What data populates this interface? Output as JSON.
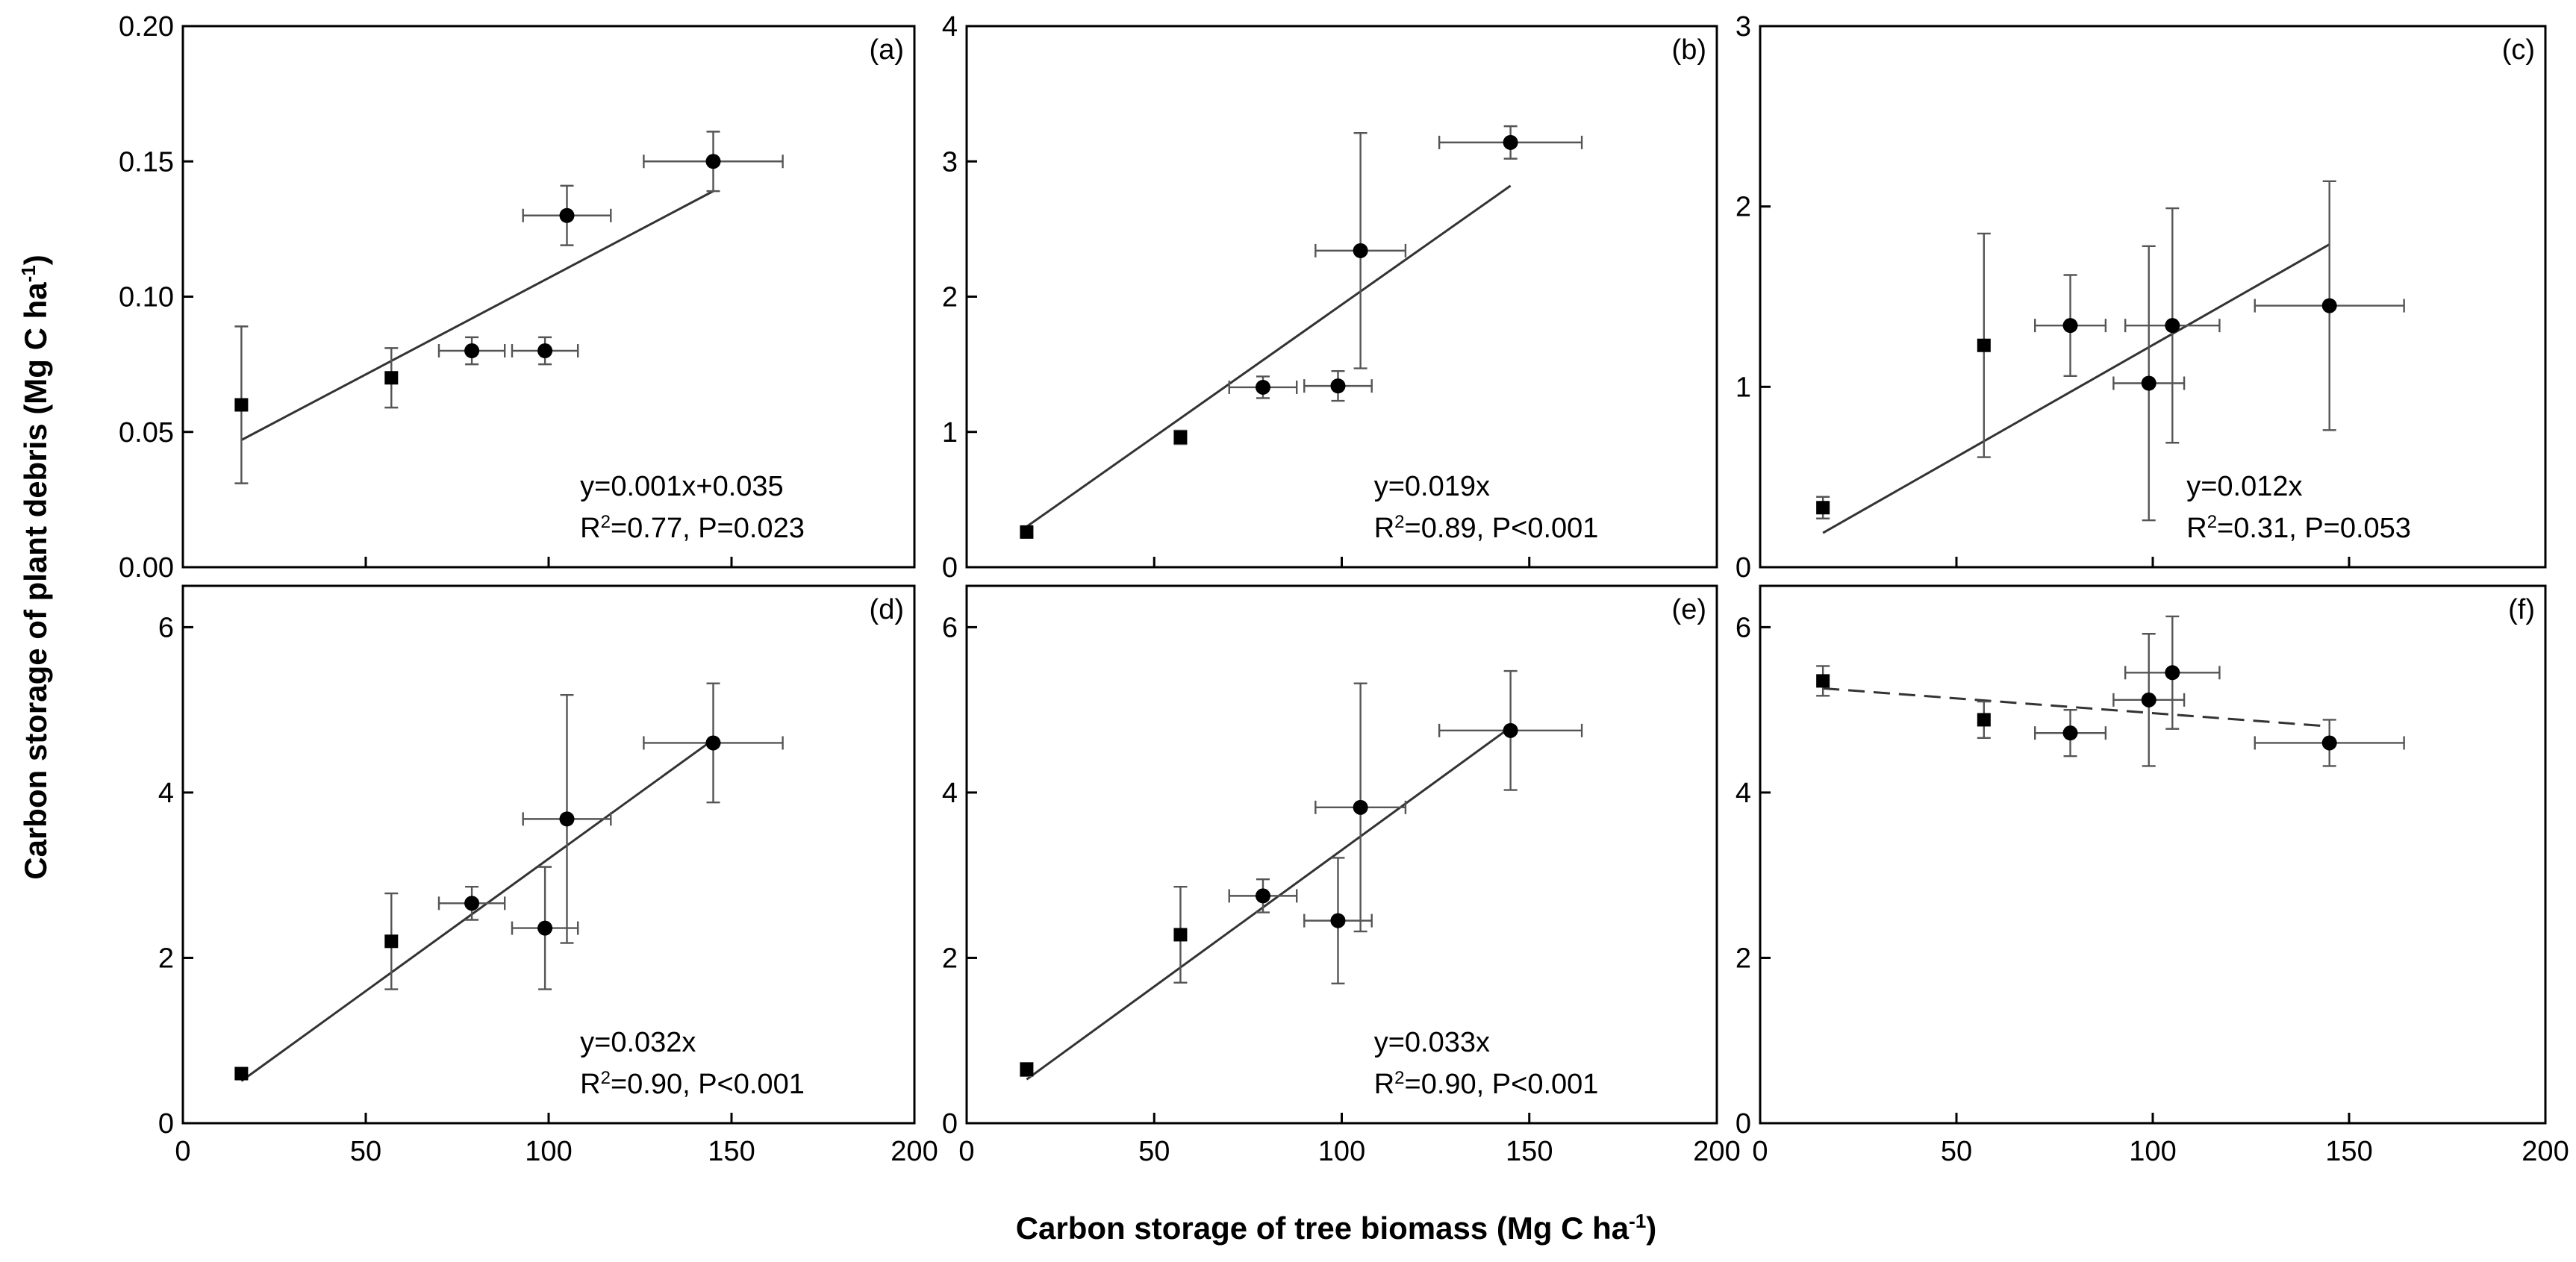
{
  "figure": {
    "xlabel": "Carbon storage of tree biomass (Mg C ha",
    "xlabel_sup": "-1",
    "xlabel_end": ")",
    "ylabel": "Carbon storage of plant debris (Mg C ha",
    "ylabel_sup": "-1",
    "ylabel_end": ")"
  },
  "chart_data": [
    {
      "type": "scatter",
      "panel": "(a)",
      "xlim": [
        0,
        200
      ],
      "ylim": [
        0,
        0.2
      ],
      "xticks": [
        "0",
        "50",
        "100",
        "150",
        "200"
      ],
      "yticks": [
        "0.00",
        "0.05",
        "0.10",
        "0.15",
        "0.20"
      ],
      "xtick_values": [
        0,
        50,
        100,
        150,
        200
      ],
      "ytick_values": [
        0,
        0.05,
        0.1,
        0.15,
        0.2
      ],
      "points": [
        {
          "x": 16,
          "y": 0.06,
          "xerr": 0,
          "yerr": 0.029,
          "marker": "square"
        },
        {
          "x": 57,
          "y": 0.07,
          "xerr": 0,
          "yerr": 0.011,
          "marker": "square"
        },
        {
          "x": 79,
          "y": 0.08,
          "xerr": 9,
          "yerr": 0.005,
          "marker": "circle"
        },
        {
          "x": 99,
          "y": 0.08,
          "xerr": 9,
          "yerr": 0.005,
          "marker": "circle"
        },
        {
          "x": 105,
          "y": 0.13,
          "xerr": 12,
          "yerr": 0.011,
          "marker": "circle"
        },
        {
          "x": 145,
          "y": 0.15,
          "xerr": 19,
          "yerr": 0.011,
          "marker": "circle"
        }
      ],
      "fit": {
        "x": [
          16,
          145
        ],
        "y": [
          0.047,
          0.139
        ],
        "dashed": false
      },
      "equation": "y=0.001x+0.035",
      "r2_label": "R",
      "r2_sup": "2",
      "stats": "=0.77, P=0.023"
    },
    {
      "type": "scatter",
      "panel": "(b)",
      "xlim": [
        0,
        200
      ],
      "ylim": [
        0,
        4
      ],
      "xticks": [
        "0",
        "50",
        "100",
        "150",
        "200"
      ],
      "yticks": [
        "0",
        "1",
        "2",
        "3",
        "4"
      ],
      "xtick_values": [
        0,
        50,
        100,
        150,
        200
      ],
      "ytick_values": [
        0,
        1,
        2,
        3,
        4
      ],
      "points": [
        {
          "x": 16,
          "y": 0.26,
          "xerr": 0,
          "yerr": 0.03,
          "marker": "square"
        },
        {
          "x": 57,
          "y": 0.96,
          "xerr": 0,
          "yerr": 0.05,
          "marker": "square"
        },
        {
          "x": 79,
          "y": 1.33,
          "xerr": 9,
          "yerr": 0.08,
          "marker": "circle"
        },
        {
          "x": 99,
          "y": 1.34,
          "xerr": 9,
          "yerr": 0.11,
          "marker": "circle"
        },
        {
          "x": 105,
          "y": 2.34,
          "xerr": 12,
          "yerr": 0.87,
          "marker": "circle"
        },
        {
          "x": 145,
          "y": 3.14,
          "xerr": 19,
          "yerr": 0.12,
          "marker": "circle"
        }
      ],
      "fit": {
        "x": [
          16,
          145
        ],
        "y": [
          0.3,
          2.82
        ],
        "dashed": false
      },
      "equation": "y=0.019x",
      "r2_label": "R",
      "r2_sup": "2",
      "stats": "=0.89, P<0.001"
    },
    {
      "type": "scatter",
      "panel": "(c)",
      "xlim": [
        0,
        200
      ],
      "ylim": [
        0,
        3
      ],
      "xticks": [
        "0",
        "50",
        "100",
        "150",
        "200"
      ],
      "yticks": [
        "0",
        "1",
        "2",
        "3"
      ],
      "xtick_values": [
        0,
        50,
        100,
        150,
        200
      ],
      "ytick_values": [
        0,
        1,
        2,
        3
      ],
      "points": [
        {
          "x": 16,
          "y": 0.33,
          "xerr": 0,
          "yerr": 0.06,
          "marker": "square"
        },
        {
          "x": 57,
          "y": 1.23,
          "xerr": 0,
          "yerr": 0.62,
          "marker": "square"
        },
        {
          "x": 79,
          "y": 1.34,
          "xerr": 9,
          "yerr": 0.28,
          "marker": "circle"
        },
        {
          "x": 99,
          "y": 1.02,
          "xerr": 9,
          "yerr": 0.76,
          "marker": "circle"
        },
        {
          "x": 105,
          "y": 1.34,
          "xerr": 12,
          "yerr": 0.65,
          "marker": "circle"
        },
        {
          "x": 145,
          "y": 1.45,
          "xerr": 19,
          "yerr": 0.69,
          "marker": "circle"
        }
      ],
      "fit": {
        "x": [
          16,
          145
        ],
        "y": [
          0.19,
          1.79
        ],
        "dashed": false
      },
      "equation": "y=0.012x",
      "r2_label": "R",
      "r2_sup": "2",
      "stats": "=0.31, P=0.053"
    },
    {
      "type": "scatter",
      "panel": "(d)",
      "xlim": [
        0,
        200
      ],
      "ylim": [
        0,
        6.5
      ],
      "xticks": [
        "0",
        "50",
        "100",
        "150",
        "200"
      ],
      "yticks": [
        "0",
        "2",
        "4",
        "6"
      ],
      "xtick_values": [
        0,
        50,
        100,
        150,
        200
      ],
      "ytick_values": [
        0,
        2,
        4,
        6
      ],
      "points": [
        {
          "x": 16,
          "y": 0.6,
          "xerr": 0,
          "yerr": 0.05,
          "marker": "square"
        },
        {
          "x": 57,
          "y": 2.2,
          "xerr": 0,
          "yerr": 0.58,
          "marker": "square"
        },
        {
          "x": 79,
          "y": 2.66,
          "xerr": 9,
          "yerr": 0.2,
          "marker": "circle"
        },
        {
          "x": 99,
          "y": 2.36,
          "xerr": 9,
          "yerr": 0.74,
          "marker": "circle"
        },
        {
          "x": 105,
          "y": 3.68,
          "xerr": 12,
          "yerr": 1.5,
          "marker": "circle"
        },
        {
          "x": 145,
          "y": 4.6,
          "xerr": 19,
          "yerr": 0.72,
          "marker": "circle"
        }
      ],
      "fit": {
        "x": [
          16,
          145
        ],
        "y": [
          0.51,
          4.64
        ],
        "dashed": false
      },
      "equation": "y=0.032x",
      "r2_label": "R",
      "r2_sup": "2",
      "stats": "=0.90, P<0.001"
    },
    {
      "type": "scatter",
      "panel": "(e)",
      "xlim": [
        0,
        200
      ],
      "ylim": [
        0,
        6.5
      ],
      "xticks": [
        "0",
        "50",
        "100",
        "150",
        "200"
      ],
      "yticks": [
        "0",
        "2",
        "4",
        "6"
      ],
      "xtick_values": [
        0,
        50,
        100,
        150,
        200
      ],
      "ytick_values": [
        0,
        2,
        4,
        6
      ],
      "points": [
        {
          "x": 16,
          "y": 0.65,
          "xerr": 0,
          "yerr": 0.08,
          "marker": "square"
        },
        {
          "x": 57,
          "y": 2.28,
          "xerr": 0,
          "yerr": 0.58,
          "marker": "square"
        },
        {
          "x": 79,
          "y": 2.75,
          "xerr": 9,
          "yerr": 0.2,
          "marker": "circle"
        },
        {
          "x": 99,
          "y": 2.45,
          "xerr": 9,
          "yerr": 0.76,
          "marker": "circle"
        },
        {
          "x": 105,
          "y": 3.82,
          "xerr": 12,
          "yerr": 1.5,
          "marker": "circle"
        },
        {
          "x": 145,
          "y": 4.75,
          "xerr": 19,
          "yerr": 0.72,
          "marker": "circle"
        }
      ],
      "fit": {
        "x": [
          16,
          145
        ],
        "y": [
          0.53,
          4.79
        ],
        "dashed": false
      },
      "equation": "y=0.033x",
      "r2_label": "R",
      "r2_sup": "2",
      "stats": "=0.90, P<0.001"
    },
    {
      "type": "scatter",
      "panel": "(f)",
      "xlim": [
        0,
        200
      ],
      "ylim": [
        0,
        6.5
      ],
      "xticks": [
        "0",
        "50",
        "100",
        "150",
        "200"
      ],
      "yticks": [
        "0",
        "2",
        "4",
        "6"
      ],
      "xtick_values": [
        0,
        50,
        100,
        150,
        200
      ],
      "ytick_values": [
        0,
        2,
        4,
        6
      ],
      "points": [
        {
          "x": 16,
          "y": 5.35,
          "xerr": 0,
          "yerr": 0.18,
          "marker": "square"
        },
        {
          "x": 57,
          "y": 4.88,
          "xerr": 0,
          "yerr": 0.22,
          "marker": "square"
        },
        {
          "x": 79,
          "y": 4.72,
          "xerr": 9,
          "yerr": 0.28,
          "marker": "circle"
        },
        {
          "x": 99,
          "y": 5.12,
          "xerr": 9,
          "yerr": 0.8,
          "marker": "circle"
        },
        {
          "x": 105,
          "y": 5.45,
          "xerr": 12,
          "yerr": 0.68,
          "marker": "circle"
        },
        {
          "x": 145,
          "y": 4.6,
          "xerr": 19,
          "yerr": 0.28,
          "marker": "circle"
        }
      ],
      "fit": {
        "x": [
          16,
          145
        ],
        "y": [
          5.26,
          4.8
        ],
        "dashed": true
      },
      "equation": "",
      "r2_label": "",
      "r2_sup": "",
      "stats": ""
    }
  ]
}
